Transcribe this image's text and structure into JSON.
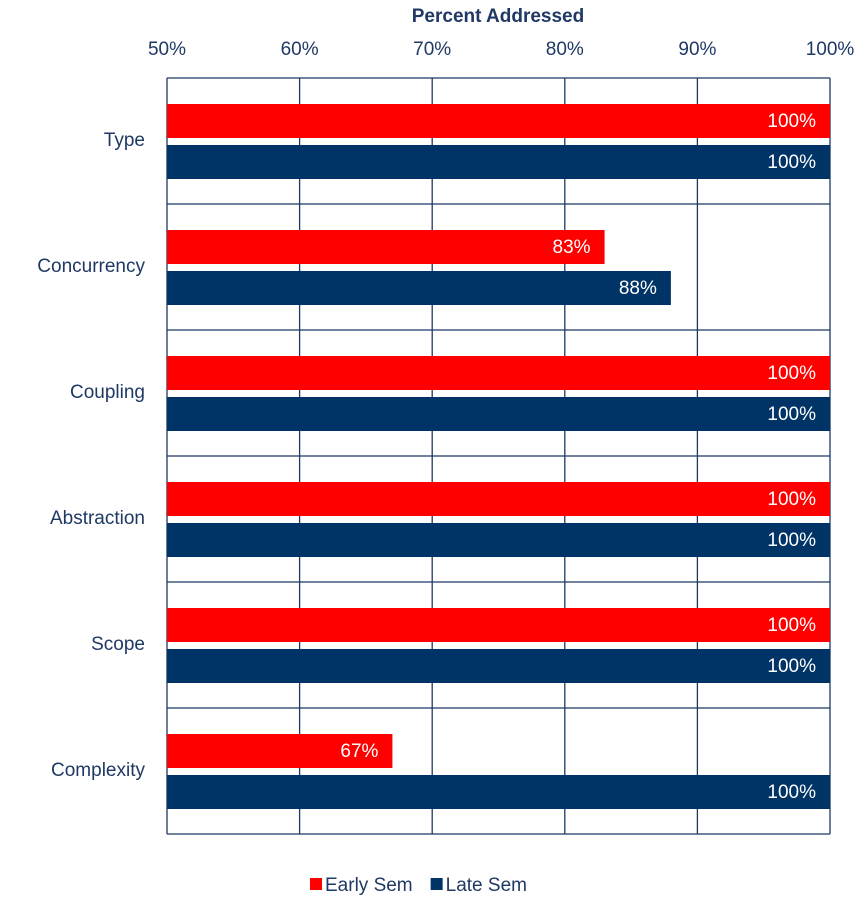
{
  "chart_data": {
    "type": "bar",
    "x_label": "Percent Addressed",
    "categories": [
      "Type",
      "Concurrency",
      "Coupling",
      "Abstraction",
      "Scope",
      "Complexity"
    ],
    "series": [
      {
        "name": "Early Sem",
        "color": "#ff0000",
        "values": [
          100,
          83,
          100,
          100,
          100,
          67
        ],
        "value_labels": [
          "100%",
          "83%",
          "100%",
          "100%",
          "100%",
          "67%"
        ]
      },
      {
        "name": "Late Sem",
        "color": "#003366",
        "values": [
          100,
          88,
          100,
          100,
          100,
          100
        ],
        "value_labels": [
          "100%",
          "88%",
          "100%",
          "100%",
          "100%",
          "100%"
        ]
      }
    ],
    "xlim": [
      50,
      100
    ],
    "xticks": [
      {
        "value": 50,
        "label": "50%"
      },
      {
        "value": 60,
        "label": "60%"
      },
      {
        "value": 70,
        "label": "70%"
      },
      {
        "value": 80,
        "label": "80%"
      },
      {
        "value": 90,
        "label": "90%"
      },
      {
        "value": 100,
        "label": "100%"
      }
    ],
    "grid": true,
    "legend": "bottom"
  }
}
